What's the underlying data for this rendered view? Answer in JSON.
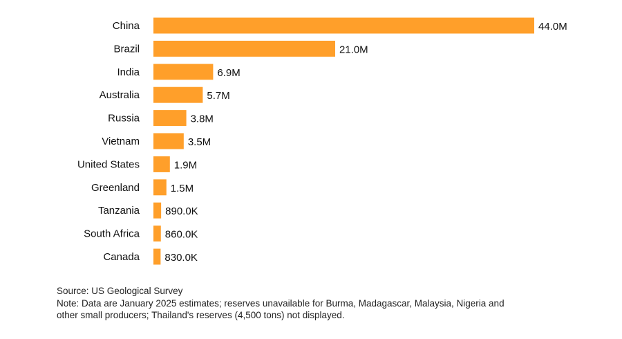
{
  "chart_data": {
    "type": "bar",
    "orientation": "horizontal",
    "categories": [
      "China",
      "Brazil",
      "India",
      "Australia",
      "Russia",
      "Vietnam",
      "United States",
      "Greenland",
      "Tanzania",
      "South Africa",
      "Canada"
    ],
    "values": [
      44000000,
      21000000,
      6900000,
      5700000,
      3800000,
      3500000,
      1900000,
      1500000,
      890000,
      860000,
      830000
    ],
    "value_labels": [
      "44.0M",
      "21.0M",
      "6.9M",
      "5.7M",
      "3.8M",
      "3.5M",
      "1.9M",
      "1.5M",
      "890.0K",
      "860.0K",
      "830.0K"
    ],
    "bar_color": "#FF9F2A",
    "xlim": [
      0,
      44000000
    ],
    "grid": false
  },
  "footer": {
    "source": "Source: US Geological Survey",
    "note_line1": "Note: Data are January 2025 estimates; reserves unavailable for Burma, Madagascar, Malaysia, Nigeria and",
    "note_line2": "other small producers; Thailand's reserves (4,500 tons) not displayed."
  }
}
